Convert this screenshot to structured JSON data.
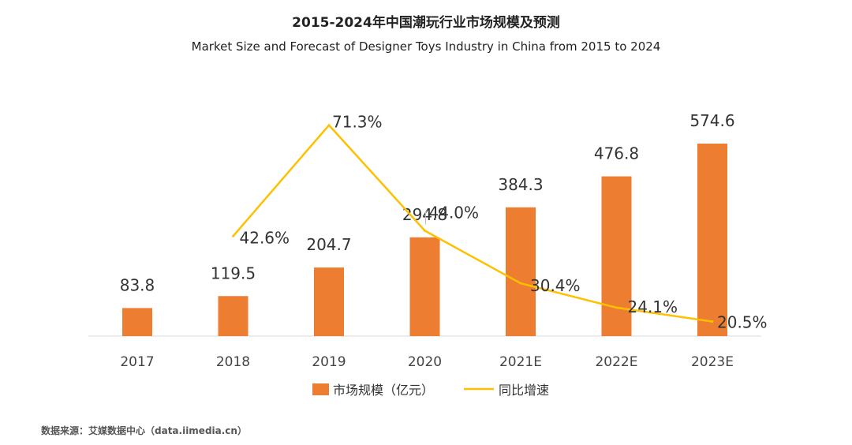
{
  "header": {
    "title": "2015-2024年中国潮玩行业市场规模及预测",
    "subtitle": "Market Size and Forecast of Designer Toys Industry in China from 2015 to 2024"
  },
  "source": "数据来源：艾媒数据中心（data.iimedia.cn）",
  "chart_data": {
    "type": "bar",
    "categories": [
      "2017",
      "2018",
      "2019",
      "2020",
      "2021E",
      "2022E",
      "2023E"
    ],
    "series": [
      {
        "name": "市场规模（亿元）",
        "type": "bar",
        "color": "#ED7D31",
        "values": [
          83.8,
          119.5,
          204.7,
          294.8,
          384.3,
          476.8,
          574.6
        ],
        "labels": [
          "83.8",
          "119.5",
          "204.7",
          "294.8",
          "384.3",
          "476.8",
          "574.6"
        ]
      },
      {
        "name": "同比增速",
        "type": "line",
        "color": "#FFC000",
        "values": [
          null,
          42.6,
          71.3,
          44.0,
          30.4,
          24.1,
          20.5
        ],
        "labels": [
          null,
          "42.6%",
          "71.3%",
          "44.0%",
          "30.4%",
          "24.1%",
          "20.5%"
        ]
      }
    ],
    "grid": false,
    "legend": "bottom",
    "gridlines": false
  }
}
